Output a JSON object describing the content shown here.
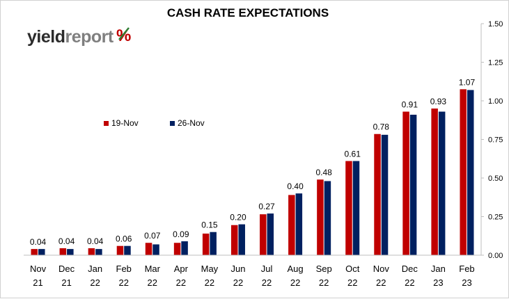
{
  "logo": {
    "part1": "yield",
    "part2": "report",
    "symbol": "%"
  },
  "colors": {
    "series1": "#c00000",
    "series2": "#002060",
    "logo_red": "#c00000",
    "logo_green": "#2e7d32"
  },
  "chart_data": {
    "type": "bar",
    "title": "CASH RATE EXPECTATIONS",
    "xlabel": "",
    "ylabel": "",
    "y_axis_position": "right",
    "ylim": [
      0,
      1.5
    ],
    "yticks": [
      "0.00",
      "0.25",
      "0.50",
      "0.75",
      "1.00",
      "1.25",
      "1.50"
    ],
    "grid": false,
    "legend_position": "top-left",
    "categories": [
      [
        "Nov",
        "21"
      ],
      [
        "Dec",
        "21"
      ],
      [
        "Jan",
        "22"
      ],
      [
        "Feb",
        "22"
      ],
      [
        "Mar",
        "22"
      ],
      [
        "Apr",
        "22"
      ],
      [
        "May",
        "22"
      ],
      [
        "Jun",
        "22"
      ],
      [
        "Jul",
        "22"
      ],
      [
        "Aug",
        "22"
      ],
      [
        "Sep",
        "22"
      ],
      [
        "Oct",
        "22"
      ],
      [
        "Nov",
        "22"
      ],
      [
        "Dec",
        "22"
      ],
      [
        "Jan",
        "23"
      ],
      [
        "Feb",
        "23"
      ]
    ],
    "series": [
      {
        "name": "19-Nov",
        "values": [
          0.04,
          0.045,
          0.045,
          0.06,
          0.08,
          0.08,
          0.14,
          0.195,
          0.265,
          0.39,
          0.49,
          0.61,
          0.785,
          0.93,
          0.95,
          1.075
        ]
      },
      {
        "name": "26-Nov",
        "values": [
          0.04,
          0.04,
          0.04,
          0.06,
          0.07,
          0.09,
          0.15,
          0.2,
          0.27,
          0.4,
          0.48,
          0.61,
          0.78,
          0.91,
          0.93,
          1.07
        ]
      }
    ],
    "data_labels": [
      "0.04",
      "0.04",
      "0.04",
      "0.06",
      "0.07",
      "0.09",
      "0.15",
      "0.20",
      "0.27",
      "0.40",
      "0.48",
      "0.61",
      "0.78",
      "0.91",
      "0.93",
      "1.07"
    ]
  }
}
